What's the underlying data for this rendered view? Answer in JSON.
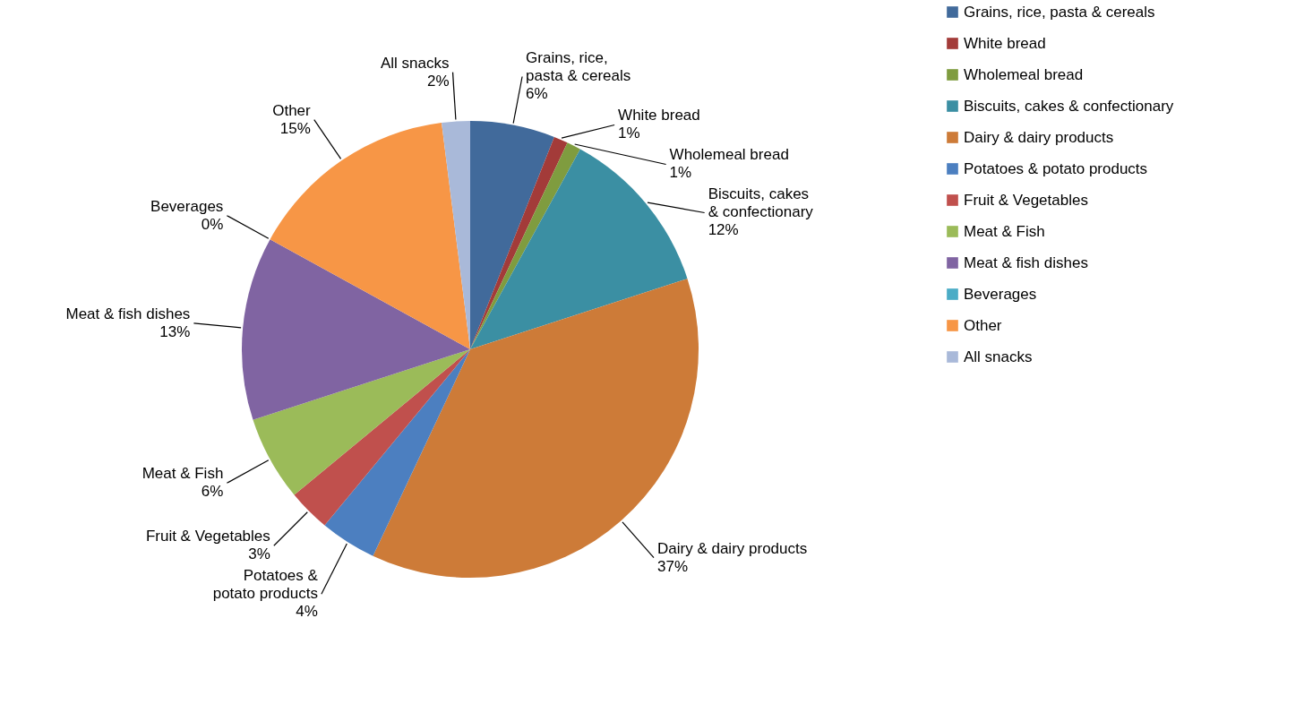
{
  "chart_data": {
    "type": "pie",
    "categories": [
      "Grains, rice, pasta & cereals",
      "White bread",
      "Wholemeal bread",
      "Biscuits, cakes & confectionary",
      "Dairy & dairy products",
      "Potatoes & potato products",
      "Fruit & Vegetables",
      "Meat & Fish",
      "Meat & fish dishes",
      "Beverages",
      "Other",
      "All snacks"
    ],
    "values": [
      6,
      1,
      1,
      12,
      37,
      4,
      3,
      6,
      13,
      0,
      15,
      2
    ],
    "value_labels": [
      "6%",
      "1%",
      "1%",
      "12%",
      "37%",
      "4%",
      "3%",
      "6%",
      "13%",
      "0%",
      "15%",
      "2%"
    ],
    "colors": [
      "#416a9b",
      "#a33b39",
      "#7f9c3f",
      "#3b8fa3",
      "#cd7b38",
      "#4c7fc0",
      "#c0504d",
      "#9bbb59",
      "#8064a2",
      "#4bacc6",
      "#f79646",
      "#a9b9d9"
    ],
    "legend": "right"
  }
}
